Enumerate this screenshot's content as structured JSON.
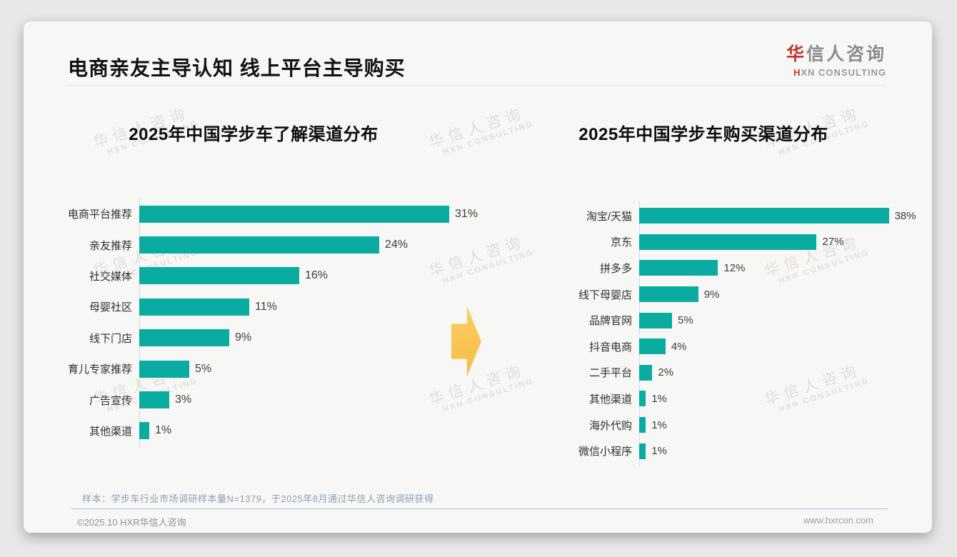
{
  "page": {
    "title": "电商亲友主导认知 线上平台主导购买",
    "logo": {
      "zh_accent": "华",
      "zh_rest": "信人咨询",
      "en_accent": "H",
      "en_rest": "XN CONSULTING"
    },
    "watermark": {
      "line1": "华信人咨询",
      "line2": "HXN CONSULTING"
    },
    "footer": {
      "sample_note": "样本：学步车行业市场调研样本量N=1379，于2025年8月通过华信人咨询调研获得",
      "copyright": "©2025.10 HXR华信人咨询",
      "website": "www.hxrcon.com"
    },
    "colors": {
      "bar": "#0aaca2",
      "accent_red": "#c0392b",
      "arrow": "#f9c45c"
    }
  },
  "chart_data": [
    {
      "type": "bar",
      "orientation": "horizontal",
      "title": "2025年中国学步车了解渠道分布",
      "categories": [
        "电商平台推荐",
        "亲友推荐",
        "社交媒体",
        "母婴社区",
        "线下门店",
        "育儿专家推荐",
        "广告宣传",
        "其他渠道"
      ],
      "values": [
        31,
        24,
        16,
        11,
        9,
        5,
        3,
        1
      ],
      "unit": "%",
      "xlim": [
        0,
        35
      ],
      "grid": false,
      "value_labels": "end-of-bar"
    },
    {
      "type": "bar",
      "orientation": "horizontal",
      "title": "2025年中国学步车购买渠道分布",
      "categories": [
        "淘宝/天猫",
        "京东",
        "拼多多",
        "线下母婴店",
        "品牌官网",
        "抖音电商",
        "二手平台",
        "其他渠道",
        "海外代购",
        "微信小程序"
      ],
      "values": [
        38,
        27,
        12,
        9,
        5,
        4,
        2,
        1,
        1,
        1
      ],
      "unit": "%",
      "xlim": [
        0,
        40
      ],
      "grid": false,
      "value_labels": "end-of-bar"
    }
  ]
}
